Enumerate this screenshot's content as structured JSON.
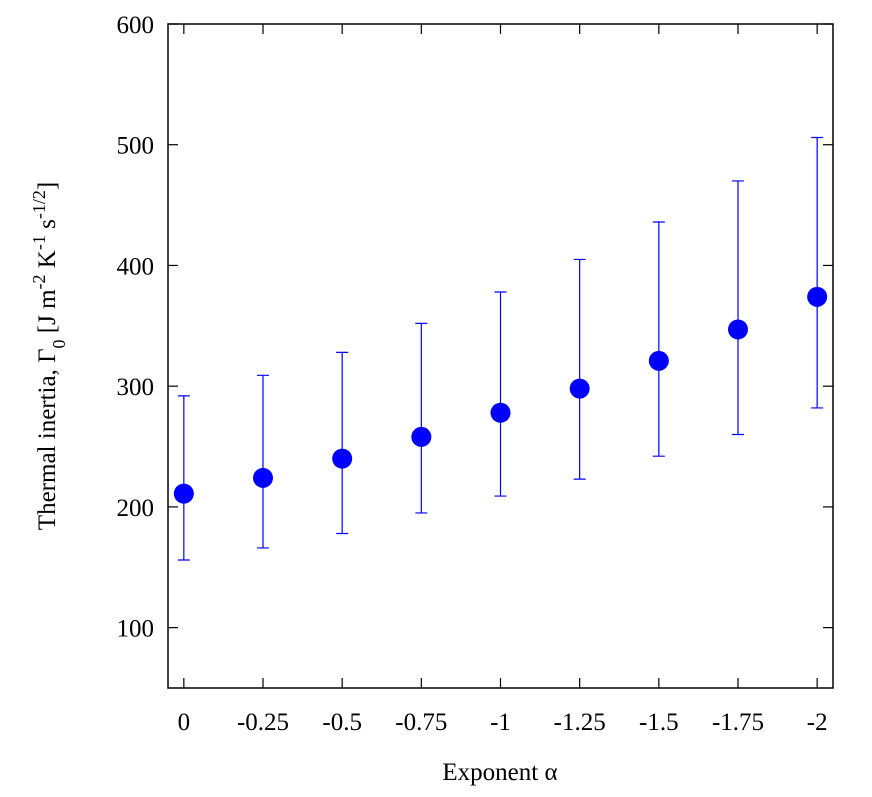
{
  "chart_data": {
    "type": "errorbar",
    "xlabel": "Exponent α",
    "ylabel": [
      "Thermal inertia,  Γ",
      "0",
      "  [J m",
      "-2",
      " K",
      "-1",
      " s",
      "-1/2",
      "]"
    ],
    "x": [
      0,
      -0.25,
      -0.5,
      -0.75,
      -1,
      -1.25,
      -1.5,
      -1.75,
      -2
    ],
    "xlim": [
      0.05,
      -2.05
    ],
    "xticks": [
      0,
      -0.25,
      -0.5,
      -0.75,
      -1,
      -1.25,
      -1.5,
      -1.75,
      -2
    ],
    "ylim": [
      50,
      600
    ],
    "yticks": [
      100,
      200,
      300,
      400,
      500,
      600
    ],
    "series": [
      {
        "color": "#0000ff",
        "values": [
          211,
          224,
          240,
          258,
          278,
          298,
          321,
          347,
          374
        ],
        "err_minus": [
          55,
          58,
          62,
          63,
          69,
          75,
          79,
          87,
          92
        ],
        "err_plus": [
          81,
          85,
          88,
          94,
          100,
          107,
          115,
          123,
          132
        ]
      }
    ]
  }
}
